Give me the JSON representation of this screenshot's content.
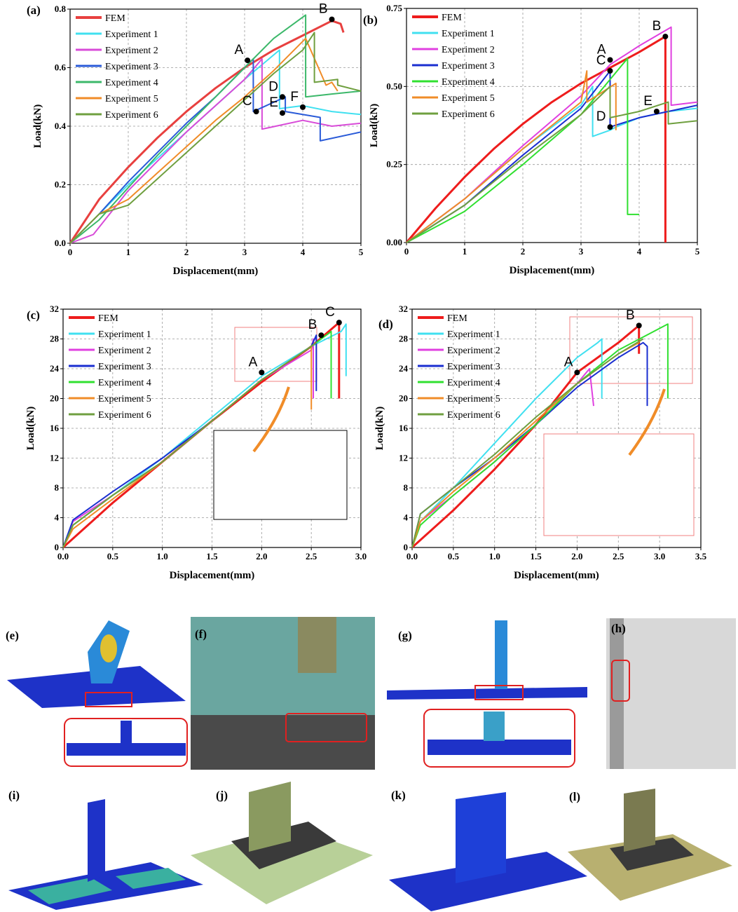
{
  "chart_data": [
    {
      "type": "line",
      "panel": "(a)",
      "x_label": "Displacement(mm)",
      "y_label": "Load(kN)",
      "grid": true,
      "legend": "upper left",
      "xlim": [
        0,
        5
      ],
      "ylim": [
        0,
        0.8
      ],
      "xticks": [
        0,
        1,
        2,
        3,
        4,
        5
      ],
      "yticks": [
        {
          "value": 0,
          "label": "0.0"
        },
        0.2,
        0.4,
        0.6,
        0.8
      ],
      "series": [
        {
          "name": "FEM",
          "color": "#e8403f",
          "x": [
            0,
            0.5,
            1,
            1.5,
            2,
            2.5,
            3,
            3.5,
            4,
            4.5,
            4.65,
            4.7
          ],
          "values": [
            0,
            0.15,
            0.26,
            0.36,
            0.45,
            0.53,
            0.6,
            0.66,
            0.71,
            0.76,
            0.75,
            0.72
          ]
        },
        {
          "name": "Experiment 1",
          "color": "#40e0f0",
          "x": [
            0,
            0.5,
            1,
            1.5,
            2,
            2.5,
            3,
            3.6,
            3.6,
            4,
            4.5,
            5
          ],
          "values": [
            0,
            0.1,
            0.2,
            0.29,
            0.38,
            0.47,
            0.56,
            0.66,
            0.46,
            0.47,
            0.45,
            0.44
          ]
        },
        {
          "name": "Experiment 2",
          "color": "#d84bd8",
          "x": [
            0,
            0.4,
            1,
            1.5,
            2,
            2.5,
            3,
            3.3,
            3.3,
            4,
            4.5,
            5
          ],
          "values": [
            0,
            0.03,
            0.18,
            0.28,
            0.38,
            0.47,
            0.56,
            0.63,
            0.39,
            0.42,
            0.4,
            0.41
          ]
        },
        {
          "name": "Experiment 3",
          "color": "#2a5bd8",
          "x": [
            0,
            0.5,
            1,
            1.5,
            2,
            2.5,
            3,
            3.15,
            3.15,
            3.7,
            3.7,
            4.3,
            4.3,
            5
          ],
          "values": [
            0,
            0.1,
            0.21,
            0.31,
            0.41,
            0.5,
            0.6,
            0.63,
            0.45,
            0.5,
            0.45,
            0.43,
            0.35,
            0.38
          ]
        },
        {
          "name": "Experiment 4",
          "color": "#3cb86a",
          "x": [
            0,
            0.5,
            1,
            1.5,
            2,
            2.5,
            3,
            3.5,
            4.05,
            4.05,
            4.5,
            5
          ],
          "values": [
            0,
            0.08,
            0.19,
            0.3,
            0.4,
            0.5,
            0.6,
            0.7,
            0.78,
            0.5,
            0.51,
            0.52
          ]
        },
        {
          "name": "Experiment 5",
          "color": "#f08c28",
          "x": [
            0,
            0.5,
            1,
            1.5,
            2,
            2.5,
            3,
            3.5,
            4,
            4.05,
            4.4,
            4.5,
            4.6
          ],
          "values": [
            0,
            0.1,
            0.15,
            0.24,
            0.33,
            0.42,
            0.5,
            0.59,
            0.69,
            0.7,
            0.54,
            0.55,
            0.52
          ]
        },
        {
          "name": "Experiment 6",
          "color": "#6f9f3f",
          "x": [
            0,
            0.5,
            1,
            1.5,
            2,
            2.5,
            3,
            3.5,
            4,
            4.2,
            4.2,
            4.6,
            4.6,
            5
          ],
          "values": [
            0,
            0.1,
            0.13,
            0.22,
            0.31,
            0.4,
            0.49,
            0.58,
            0.66,
            0.72,
            0.55,
            0.56,
            0.54,
            0.52
          ]
        }
      ],
      "points": [
        {
          "label": "A",
          "x": 3.05,
          "y": 0.625
        },
        {
          "label": "B",
          "x": 4.5,
          "y": 0.765
        },
        {
          "label": "C",
          "x": 3.2,
          "y": 0.45
        },
        {
          "label": "D",
          "x": 3.65,
          "y": 0.5
        },
        {
          "label": "E",
          "x": 3.65,
          "y": 0.445
        },
        {
          "label": "F",
          "x": 4.0,
          "y": 0.465
        }
      ]
    },
    {
      "type": "line",
      "panel": "(b)",
      "x_label": "Displacement(mm)",
      "y_label": "Load(kN)",
      "grid": true,
      "legend": "upper left",
      "xlim": [
        0,
        5
      ],
      "ylim": [
        0,
        0.75
      ],
      "xticks": [
        0,
        1,
        2,
        3,
        4,
        5
      ],
      "yticks": [
        {
          "value": 0,
          "label": "0.00"
        },
        0.25,
        {
          "value": 0.5,
          "label": "0.50"
        },
        0.75
      ],
      "series": [
        {
          "name": "FEM",
          "color": "#ee1c1c",
          "x": [
            0,
            0.5,
            1,
            1.5,
            2,
            2.5,
            3,
            3.5,
            4,
            4.45,
            4.45
          ],
          "values": [
            0,
            0.11,
            0.21,
            0.3,
            0.38,
            0.45,
            0.51,
            0.56,
            0.61,
            0.66,
            0
          ]
        },
        {
          "name": "Experiment 1",
          "color": "#40e0f0",
          "x": [
            0,
            1,
            2,
            3,
            3.2,
            3.2,
            3.5,
            3.6,
            4,
            4.5,
            5
          ],
          "values": [
            0,
            0.14,
            0.3,
            0.44,
            0.5,
            0.34,
            0.36,
            0.37,
            0.4,
            0.42,
            0.43
          ]
        },
        {
          "name": "Experiment 2",
          "color": "#e040e0",
          "x": [
            0,
            1,
            2,
            3,
            3.5,
            4,
            4.55,
            4.55,
            5
          ],
          "values": [
            0,
            0.14,
            0.31,
            0.47,
            0.57,
            0.63,
            0.69,
            0.44,
            0.45
          ]
        },
        {
          "name": "Experiment 3",
          "color": "#1a2ed0",
          "x": [
            0,
            1,
            2,
            3,
            3.5,
            3.5,
            4,
            4.5,
            5
          ],
          "values": [
            0,
            0.12,
            0.28,
            0.43,
            0.55,
            0.37,
            0.4,
            0.42,
            0.44
          ]
        },
        {
          "name": "Experiment 4",
          "color": "#30e030",
          "x": [
            0,
            1,
            2,
            3,
            3.8,
            3.8,
            4
          ],
          "values": [
            0,
            0.1,
            0.25,
            0.41,
            0.59,
            0.09,
            0.09
          ]
        },
        {
          "name": "Experiment 5",
          "color": "#f08c28",
          "x": [
            0,
            1,
            2,
            3,
            3.1,
            3.1,
            3.6,
            3.6
          ],
          "values": [
            0,
            0.14,
            0.3,
            0.45,
            0.55,
            0.45,
            0.51,
            0.36
          ]
        },
        {
          "name": "Experiment 6",
          "color": "#6f9f3f",
          "x": [
            0,
            1,
            2,
            3,
            3.5,
            3.5,
            4,
            4.5,
            4.5,
            5
          ],
          "values": [
            0,
            0.12,
            0.27,
            0.41,
            0.5,
            0.4,
            0.42,
            0.45,
            0.38,
            0.39
          ]
        }
      ],
      "points": [
        {
          "label": "A",
          "x": 3.5,
          "y": 0.585
        },
        {
          "label": "B",
          "x": 4.45,
          "y": 0.66
        },
        {
          "label": "C",
          "x": 3.5,
          "y": 0.55
        },
        {
          "label": "D",
          "x": 3.5,
          "y": 0.37
        },
        {
          "label": "E",
          "x": 4.3,
          "y": 0.42
        }
      ]
    },
    {
      "type": "line",
      "panel": "(c)",
      "x_label": "Displacement(mm)",
      "y_label": "Load(kN)",
      "grid": true,
      "legend": "upper left",
      "xlim": [
        0,
        3
      ],
      "ylim": [
        0,
        32
      ],
      "xticks": [
        {
          "value": 0,
          "label": "0.0"
        },
        0.5,
        {
          "value": 1,
          "label": "1.0"
        },
        1.5,
        {
          "value": 2,
          "label": "2.0"
        },
        2.5,
        {
          "value": 3,
          "label": "3.0"
        }
      ],
      "yticks": [
        0,
        4,
        8,
        12,
        16,
        20,
        24,
        28,
        32
      ],
      "series": [
        {
          "name": "FEM",
          "color": "#ee1c1c",
          "x": [
            0,
            0.5,
            1,
            1.5,
            2,
            2.5,
            2.78,
            2.78
          ],
          "values": [
            0,
            6,
            11.5,
            17,
            22.2,
            27,
            30.2,
            20
          ]
        },
        {
          "name": "Experiment 1",
          "color": "#40e0f0",
          "x": [
            0,
            0.1,
            0.5,
            1,
            1.5,
            2,
            2.5,
            2.8,
            2.85,
            2.85
          ],
          "values": [
            0,
            3,
            7,
            12,
            17.5,
            23,
            27,
            29,
            30,
            23
          ]
        },
        {
          "name": "Experiment 2",
          "color": "#e040e0",
          "x": [
            0,
            0.1,
            0.5,
            1,
            1.5,
            2,
            2.5,
            2.52,
            2.52
          ],
          "values": [
            0,
            3.5,
            7,
            11.5,
            17,
            22.5,
            26.5,
            28,
            20
          ]
        },
        {
          "name": "Experiment 3",
          "color": "#1a2ed0",
          "x": [
            0,
            0.1,
            0.5,
            1,
            1.5,
            2,
            2.5,
            2.55,
            2.55
          ],
          "values": [
            0,
            3.7,
            7.5,
            12,
            17,
            22.5,
            27,
            28.5,
            21
          ]
        },
        {
          "name": "Experiment 4",
          "color": "#30e030",
          "x": [
            0,
            0.1,
            0.5,
            1,
            1.5,
            2,
            2.5,
            2.7,
            2.7
          ],
          "values": [
            0,
            3,
            7,
            11.5,
            17,
            22.5,
            27,
            29,
            20
          ]
        },
        {
          "name": "Experiment 5",
          "color": "#f08c28",
          "x": [
            0,
            0.1,
            0.5,
            1,
            1.5,
            2,
            2.5,
            2.5
          ],
          "values": [
            0,
            2.5,
            6.5,
            11.5,
            17,
            22.5,
            27,
            18.5
          ]
        },
        {
          "name": "Experiment 6",
          "color": "#6f9f3f",
          "x": [
            0,
            0.1,
            0.5,
            1,
            1.5,
            2,
            2.5,
            2.55
          ],
          "values": [
            0,
            3,
            7,
            11.5,
            17,
            22.5,
            27,
            27.5
          ]
        }
      ],
      "points": [
        {
          "label": "A",
          "x": 2.0,
          "y": 23.5
        },
        {
          "label": "B",
          "x": 2.6,
          "y": 28.5
        },
        {
          "label": "C",
          "x": 2.78,
          "y": 30.2
        }
      ]
    },
    {
      "type": "line",
      "panel": "(d)",
      "x_label": "Displacement(mm)",
      "y_label": "Load(kN)",
      "grid": true,
      "legend": "upper left",
      "xlim": [
        0,
        3.5
      ],
      "ylim": [
        0,
        32
      ],
      "xticks": [
        {
          "value": 0,
          "label": "0.0"
        },
        0.5,
        {
          "value": 1,
          "label": "1.0"
        },
        1.5,
        {
          "value": 2,
          "label": "2.0"
        },
        2.5,
        {
          "value": 3,
          "label": "3.0"
        },
        3.5
      ],
      "yticks": [
        0,
        4,
        8,
        12,
        16,
        20,
        24,
        28,
        32
      ],
      "series": [
        {
          "name": "FEM",
          "color": "#ee1c1c",
          "x": [
            0,
            0.5,
            1,
            1.5,
            2,
            2.5,
            2.75,
            2.75
          ],
          "values": [
            0,
            5,
            10.5,
            16.5,
            23.5,
            27.5,
            29.8,
            26
          ]
        },
        {
          "name": "Experiment 1",
          "color": "#40e0f0",
          "x": [
            0,
            0.1,
            0.5,
            1,
            1.5,
            2,
            2.25,
            2.3,
            2.3
          ],
          "values": [
            0,
            3.5,
            8,
            14,
            20,
            25.5,
            27.5,
            28,
            20
          ]
        },
        {
          "name": "Experiment 2",
          "color": "#e040e0",
          "x": [
            0,
            0.1,
            0.5,
            1,
            1.5,
            2,
            2.15,
            2.2
          ],
          "values": [
            0,
            3.5,
            7,
            11.5,
            16.5,
            22,
            24,
            19
          ]
        },
        {
          "name": "Experiment 3",
          "color": "#1a2ed0",
          "x": [
            0,
            0.1,
            0.5,
            1,
            1.5,
            2,
            2.5,
            2.8,
            2.85,
            2.85
          ],
          "values": [
            0,
            4.5,
            8,
            12,
            16.5,
            21.5,
            25.5,
            27.5,
            27,
            19
          ]
        },
        {
          "name": "Experiment 4",
          "color": "#30e030",
          "x": [
            0,
            0.1,
            0.5,
            1,
            1.5,
            2,
            2.5,
            3.1,
            3.1
          ],
          "values": [
            0,
            3,
            7,
            11.5,
            16.5,
            22,
            26.5,
            30,
            20
          ]
        },
        {
          "name": "Experiment 5",
          "color": "#f08c28",
          "x": [
            0,
            0.1,
            0.5,
            1,
            1.5,
            2,
            2.5,
            2.75
          ],
          "values": [
            0,
            3.5,
            7.5,
            12,
            17,
            22,
            26,
            27.5
          ]
        },
        {
          "name": "Experiment 6",
          "color": "#6f9f3f",
          "x": [
            0,
            0.1,
            0.5,
            1,
            1.5,
            2,
            2.5,
            2.8
          ],
          "values": [
            0,
            4.5,
            8,
            12.5,
            17.5,
            22,
            26,
            28
          ]
        }
      ],
      "points": [
        {
          "label": "A",
          "x": 2.0,
          "y": 23.5
        },
        {
          "label": "B",
          "x": 2.75,
          "y": 29.8
        }
      ]
    }
  ],
  "image_panels": [
    "(e)",
    "(f)",
    "(g)",
    "(h)",
    "(i)",
    "(j)",
    "(k)",
    "(l)"
  ]
}
